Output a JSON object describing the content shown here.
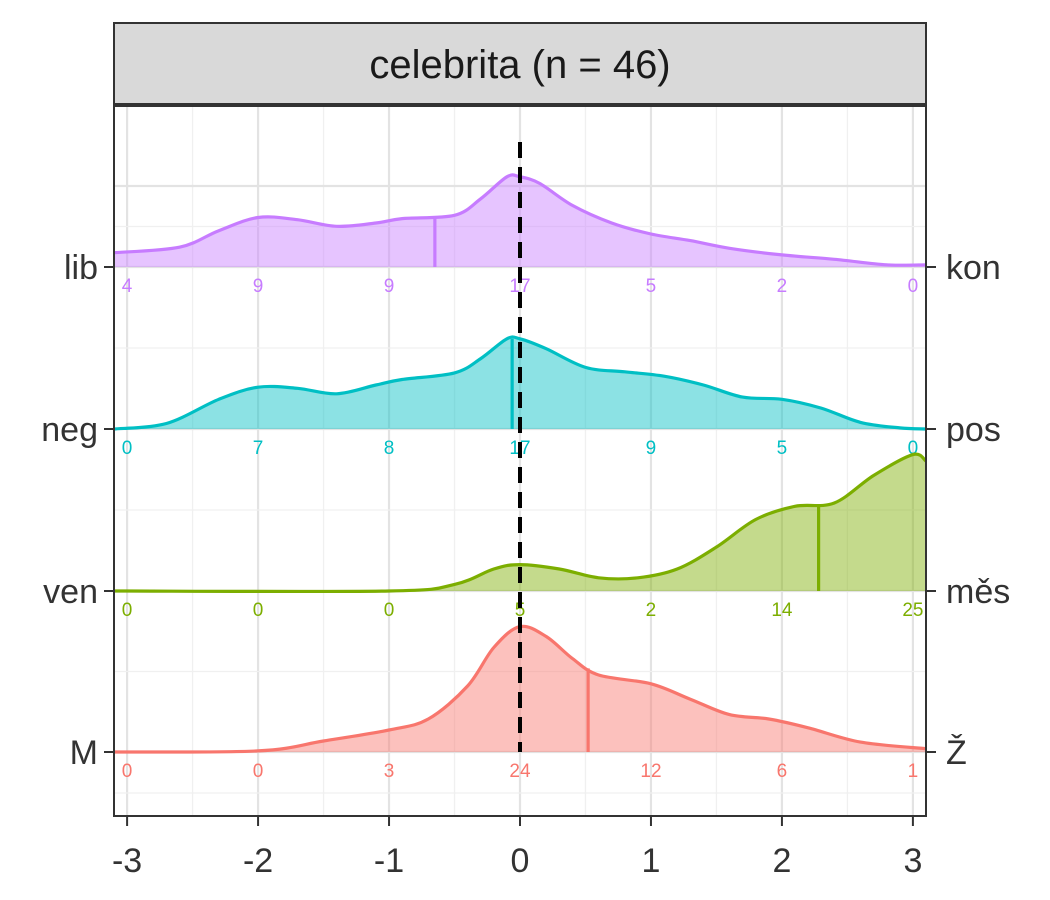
{
  "chart_data": {
    "type": "ridgeline-density",
    "title": "celebrita (n = 46)",
    "xlim": [
      -3.1,
      3.1
    ],
    "x_ticks": [
      "-3",
      "-2",
      "-1",
      "0",
      "1",
      "2",
      "3"
    ],
    "x_tick_values": [
      -3,
      -2,
      -1,
      0,
      1,
      2,
      3
    ],
    "reference_line": {
      "x": 0,
      "style": "dashed",
      "color": "#000000"
    },
    "grid": true,
    "count_positions": [
      -3,
      -2,
      -1,
      0,
      1,
      2,
      3
    ],
    "rows": [
      {
        "left_label": "lib",
        "right_label": "kon",
        "color": "#C77CFF",
        "mean": -0.65,
        "counts": [
          "4",
          "9",
          "9",
          "17",
          "5",
          "2",
          "0"
        ],
        "density": [
          [
            -3.1,
            0.13
          ],
          [
            -2.6,
            0.18
          ],
          [
            -2.3,
            0.33
          ],
          [
            -2.0,
            0.45
          ],
          [
            -1.7,
            0.43
          ],
          [
            -1.4,
            0.37
          ],
          [
            -1.1,
            0.4
          ],
          [
            -0.9,
            0.44
          ],
          [
            -0.5,
            0.47
          ],
          [
            -0.3,
            0.62
          ],
          [
            -0.1,
            0.82
          ],
          [
            0.0,
            0.82
          ],
          [
            0.15,
            0.76
          ],
          [
            0.4,
            0.56
          ],
          [
            0.7,
            0.4
          ],
          [
            1.0,
            0.3
          ],
          [
            1.3,
            0.24
          ],
          [
            1.6,
            0.17
          ],
          [
            2.0,
            0.11
          ],
          [
            2.4,
            0.07
          ],
          [
            2.8,
            0.02
          ],
          [
            3.1,
            0.02
          ]
        ]
      },
      {
        "left_label": "neg",
        "right_label": "pos",
        "color": "#00BFC4",
        "mean": -0.06,
        "counts": [
          "0",
          "7",
          "8",
          "17",
          "9",
          "5",
          "0"
        ],
        "density": [
          [
            -3.1,
            0.0
          ],
          [
            -2.7,
            0.05
          ],
          [
            -2.3,
            0.27
          ],
          [
            -2.0,
            0.38
          ],
          [
            -1.7,
            0.37
          ],
          [
            -1.4,
            0.32
          ],
          [
            -1.1,
            0.4
          ],
          [
            -0.9,
            0.45
          ],
          [
            -0.5,
            0.51
          ],
          [
            -0.3,
            0.64
          ],
          [
            -0.1,
            0.82
          ],
          [
            0.0,
            0.82
          ],
          [
            0.2,
            0.73
          ],
          [
            0.5,
            0.56
          ],
          [
            0.8,
            0.52
          ],
          [
            1.1,
            0.48
          ],
          [
            1.4,
            0.4
          ],
          [
            1.7,
            0.29
          ],
          [
            2.0,
            0.27
          ],
          [
            2.3,
            0.19
          ],
          [
            2.6,
            0.06
          ],
          [
            2.9,
            0.01
          ],
          [
            3.1,
            0.0
          ]
        ]
      },
      {
        "left_label": "ven",
        "right_label": "měs",
        "color": "#7CAE00",
        "mean": 2.28,
        "counts": [
          "0",
          "0",
          "0",
          "5",
          "2",
          "14",
          "25"
        ],
        "density": [
          [
            -3.1,
            0.0
          ],
          [
            -1.0,
            0.0
          ],
          [
            -0.5,
            0.06
          ],
          [
            -0.2,
            0.2
          ],
          [
            0.0,
            0.24
          ],
          [
            0.3,
            0.2
          ],
          [
            0.6,
            0.12
          ],
          [
            0.9,
            0.12
          ],
          [
            1.2,
            0.2
          ],
          [
            1.5,
            0.4
          ],
          [
            1.8,
            0.65
          ],
          [
            2.1,
            0.77
          ],
          [
            2.4,
            0.8
          ],
          [
            2.7,
            1.05
          ],
          [
            3.0,
            1.24
          ],
          [
            3.1,
            1.18
          ]
        ]
      },
      {
        "left_label": "M",
        "right_label": "Ž",
        "color": "#F8766D",
        "mean": 0.52,
        "counts": [
          "0",
          "0",
          "3",
          "24",
          "12",
          "6",
          "1"
        ],
        "density": [
          [
            -3.1,
            0.0
          ],
          [
            -2.0,
            0.01
          ],
          [
            -1.5,
            0.1
          ],
          [
            -1.0,
            0.2
          ],
          [
            -0.7,
            0.3
          ],
          [
            -0.4,
            0.6
          ],
          [
            -0.2,
            0.95
          ],
          [
            0.0,
            1.14
          ],
          [
            0.2,
            1.05
          ],
          [
            0.4,
            0.85
          ],
          [
            0.6,
            0.7
          ],
          [
            1.0,
            0.62
          ],
          [
            1.3,
            0.48
          ],
          [
            1.6,
            0.34
          ],
          [
            1.9,
            0.3
          ],
          [
            2.2,
            0.22
          ],
          [
            2.6,
            0.09
          ],
          [
            3.1,
            0.03
          ]
        ]
      }
    ]
  }
}
